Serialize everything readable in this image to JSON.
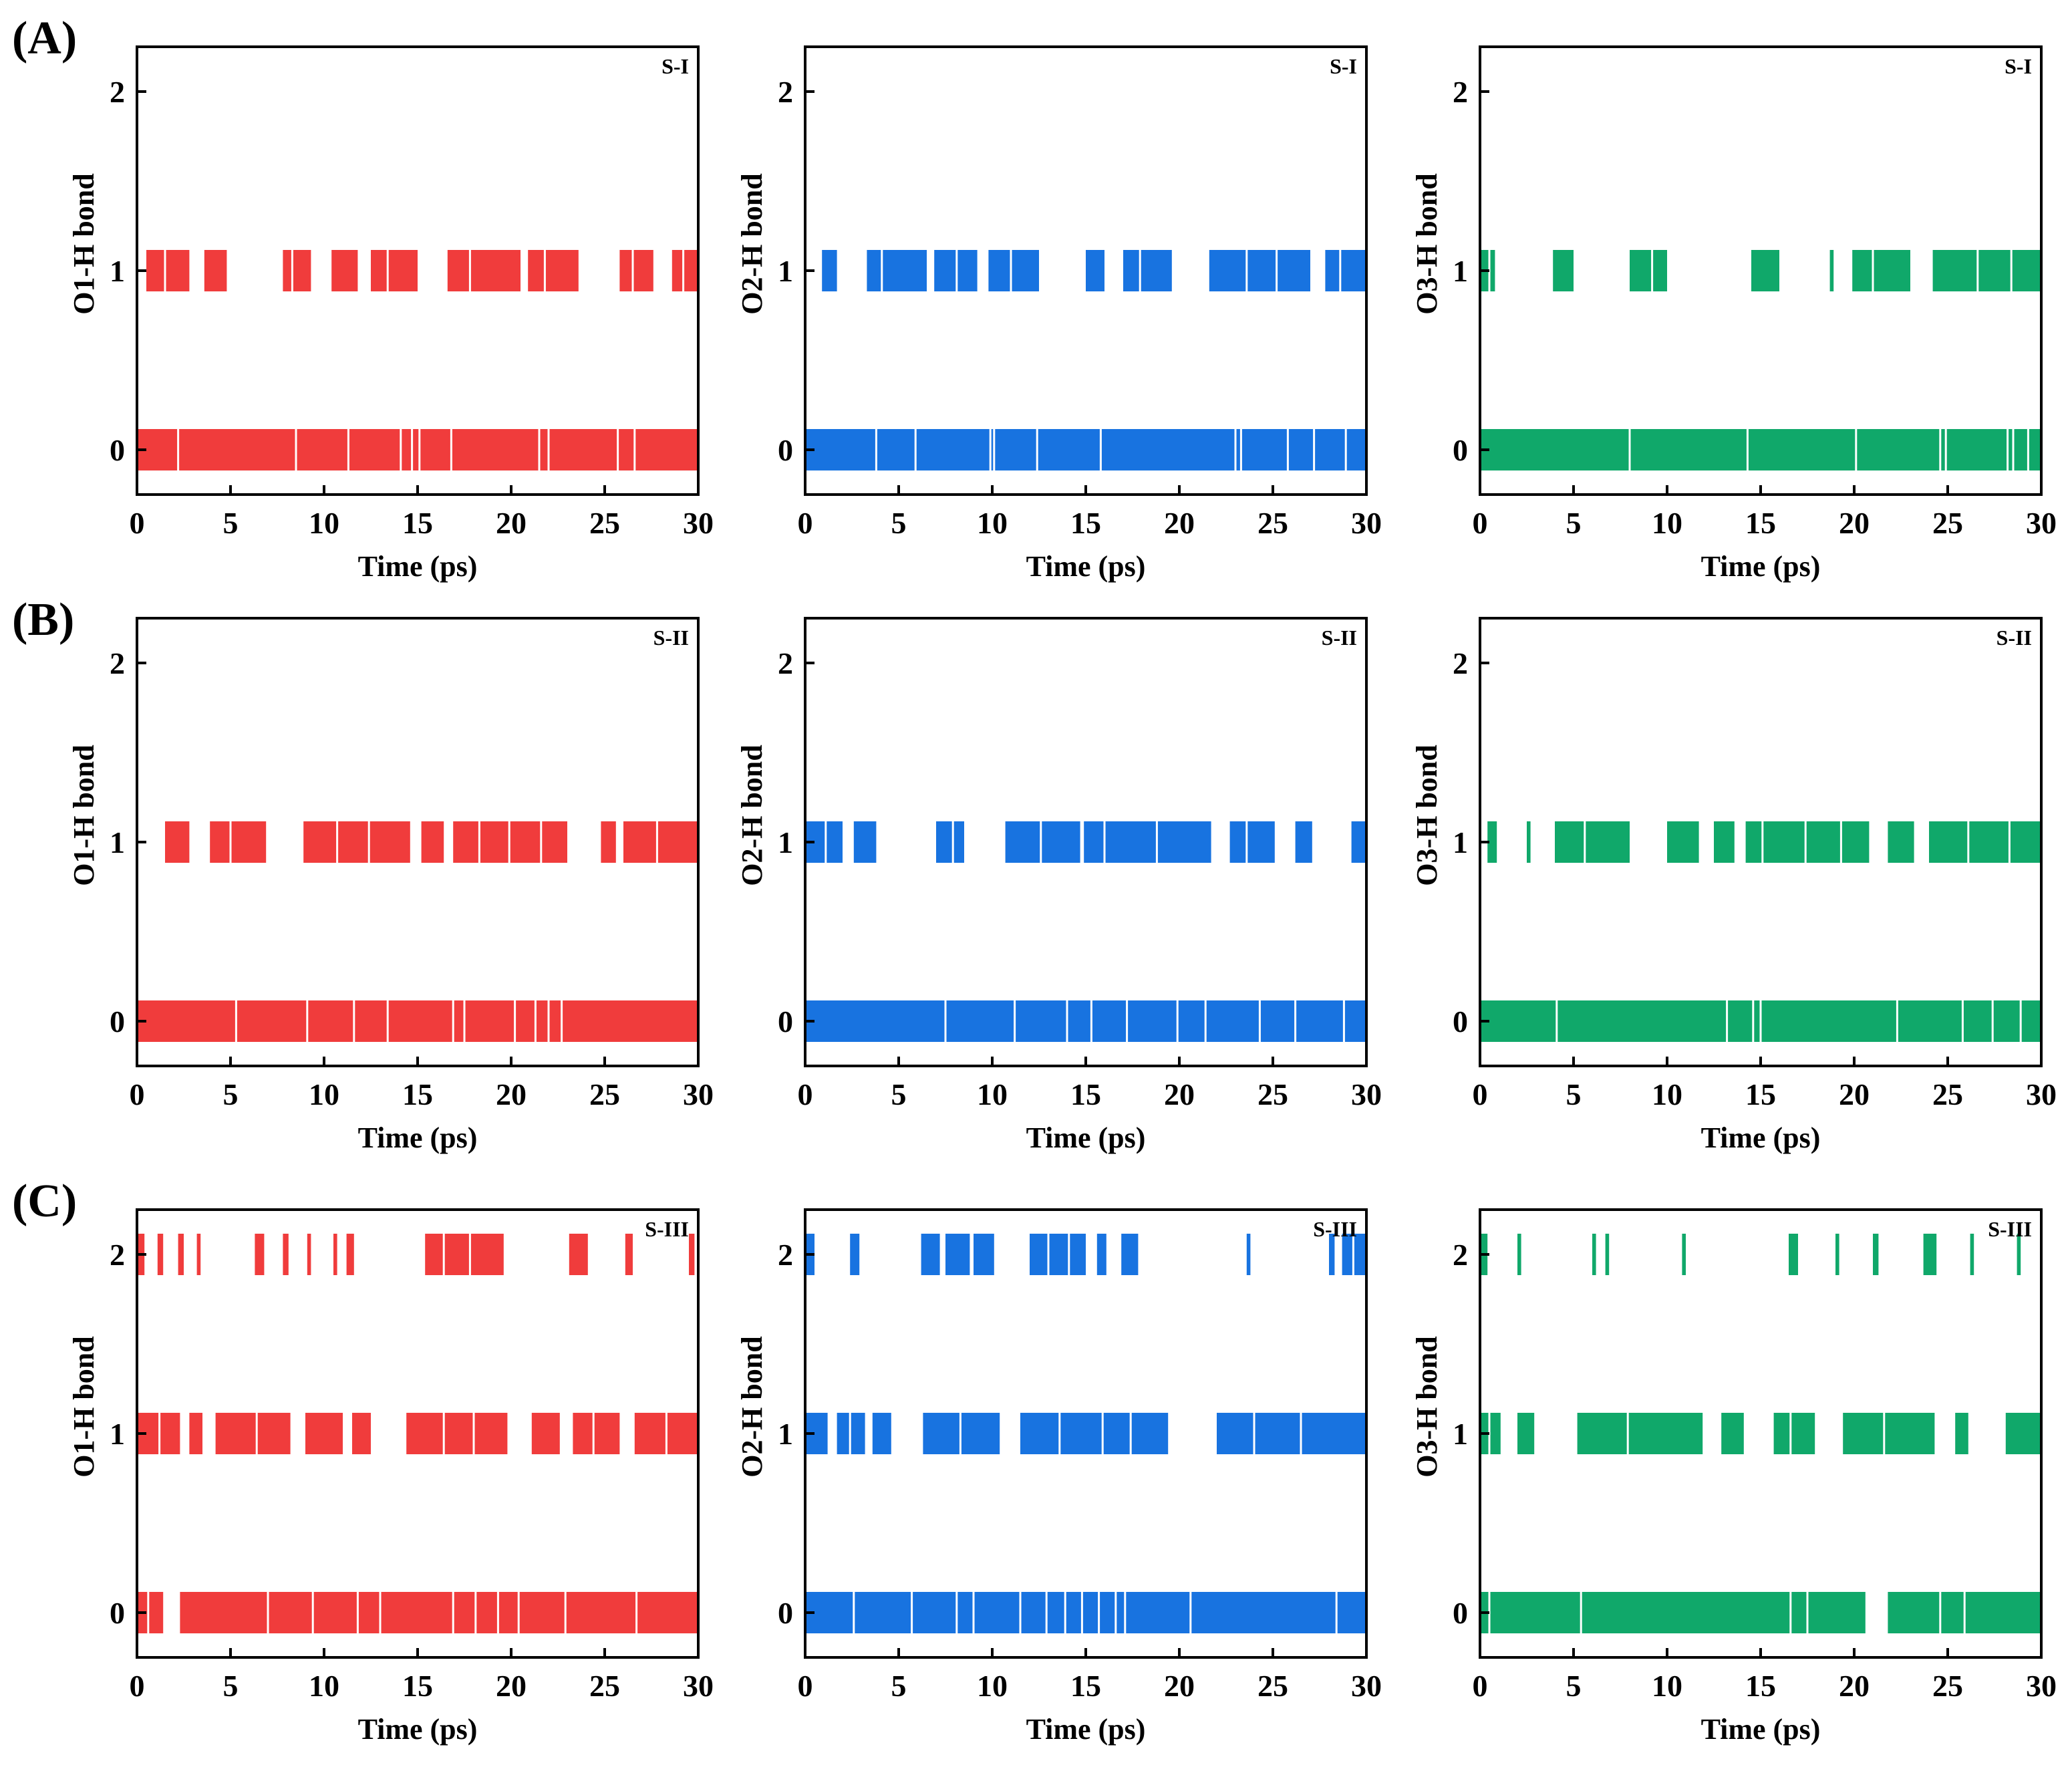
{
  "figure": {
    "row_labels": [
      "(A)",
      "(B)",
      "(C)"
    ]
  },
  "colors": {
    "O1": "#f03c3c",
    "O2": "#1873e0",
    "O3": "#10a86a",
    "axis": "#000000"
  },
  "chart_data": [
    {
      "type": "barcode",
      "id": "A-O1",
      "row": 0,
      "col": 0,
      "series_color": "O1",
      "title": "",
      "tag": "S-I",
      "xlabel": "Time (ps)",
      "ylabel": "O1-H bond",
      "xlim": [
        0,
        30
      ],
      "ylim": [
        -0.25,
        2.25
      ],
      "xticks": [
        "0",
        "5",
        "10",
        "15",
        "20",
        "25",
        "30"
      ],
      "yticks": [
        "0",
        "1",
        "2"
      ],
      "levels": [
        {
          "value": 0,
          "spans": [
            [
              0.0,
              30.0
            ]
          ],
          "gaps": [
            2.2,
            8.5,
            11.3,
            14.1,
            14.7,
            15.1,
            16.8,
            21.5,
            22.0,
            25.7,
            26.6
          ]
        },
        {
          "value": 1,
          "spans": [
            [
              0.5,
              2.8
            ],
            [
              3.6,
              4.8
            ],
            [
              7.8,
              9.3
            ],
            [
              10.4,
              11.8
            ],
            [
              12.5,
              15.0
            ],
            [
              16.6,
              20.5
            ],
            [
              20.9,
              23.6
            ],
            [
              25.8,
              27.6
            ],
            [
              28.6,
              30.0
            ]
          ],
          "gaps": [
            1.5,
            8.3,
            13.4,
            17.8,
            21.8,
            26.5,
            29.2
          ]
        },
        {
          "value": 2,
          "spans": [],
          "gaps": []
        }
      ]
    },
    {
      "type": "barcode",
      "id": "A-O2",
      "row": 0,
      "col": 1,
      "series_color": "O2",
      "title": "",
      "tag": "S-I",
      "xlabel": "Time (ps)",
      "ylabel": "O2-H bond",
      "xlim": [
        0,
        30
      ],
      "ylim": [
        -0.25,
        2.25
      ],
      "xticks": [
        "0",
        "5",
        "10",
        "15",
        "20",
        "25",
        "30"
      ],
      "yticks": [
        "0",
        "1",
        "2"
      ],
      "levels": [
        {
          "value": 0,
          "spans": [
            [
              0.0,
              30.0
            ]
          ],
          "gaps": [
            3.8,
            5.9,
            9.9,
            10.1,
            12.4,
            15.8,
            23.0,
            23.3,
            25.8,
            27.2,
            28.9
          ]
        },
        {
          "value": 1,
          "spans": [
            [
              0.9,
              1.7
            ],
            [
              3.3,
              6.5
            ],
            [
              6.9,
              9.2
            ],
            [
              9.8,
              12.5
            ],
            [
              15.0,
              16.0
            ],
            [
              17.0,
              19.6
            ],
            [
              21.6,
              27.0
            ],
            [
              27.8,
              30.0
            ]
          ],
          "gaps": [
            4.1,
            8.1,
            11.0,
            17.9,
            23.6,
            25.2,
            28.6
          ]
        },
        {
          "value": 2,
          "spans": [],
          "gaps": []
        }
      ]
    },
    {
      "type": "barcode",
      "id": "A-O3",
      "row": 0,
      "col": 2,
      "series_color": "O3",
      "title": "",
      "tag": "S-I",
      "xlabel": "Time (ps)",
      "ylabel": "O3-H bond",
      "xlim": [
        0,
        30
      ],
      "ylim": [
        -0.25,
        2.25
      ],
      "xticks": [
        "0",
        "5",
        "10",
        "15",
        "20",
        "25",
        "30"
      ],
      "yticks": [
        "0",
        "1",
        "2"
      ],
      "levels": [
        {
          "value": 0,
          "spans": [
            [
              0.0,
              30.0
            ]
          ],
          "gaps": [
            8.0,
            14.3,
            20.1,
            24.6,
            24.9,
            28.2,
            28.5,
            29.3
          ]
        },
        {
          "value": 1,
          "spans": [
            [
              0.0,
              0.8
            ],
            [
              3.9,
              5.0
            ],
            [
              8.0,
              10.0
            ],
            [
              14.5,
              16.0
            ],
            [
              18.7,
              18.9
            ],
            [
              19.9,
              23.0
            ],
            [
              24.2,
              30.0
            ]
          ],
          "gaps": [
            0.5,
            9.2,
            21.0,
            26.6,
            28.4
          ]
        },
        {
          "value": 2,
          "spans": [],
          "gaps": []
        }
      ]
    },
    {
      "type": "barcode",
      "id": "B-O1",
      "row": 1,
      "col": 0,
      "series_color": "O1",
      "title": "",
      "tag": "S-II",
      "xlabel": "Time (ps)",
      "ylabel": "O1-H bond",
      "xlim": [
        0,
        30
      ],
      "ylim": [
        -0.25,
        2.25
      ],
      "xticks": [
        "0",
        "5",
        "10",
        "15",
        "20",
        "25",
        "30"
      ],
      "yticks": [
        "0",
        "1",
        "2"
      ],
      "levels": [
        {
          "value": 0,
          "spans": [
            [
              0.0,
              30.0
            ]
          ],
          "gaps": [
            5.3,
            9.1,
            11.6,
            13.4,
            16.9,
            17.5,
            20.2,
            21.3,
            22.0,
            22.7
          ]
        },
        {
          "value": 1,
          "spans": [
            [
              1.5,
              2.8
            ],
            [
              3.9,
              6.9
            ],
            [
              8.9,
              14.6
            ],
            [
              15.2,
              16.4
            ],
            [
              16.9,
              23.0
            ],
            [
              24.8,
              25.6
            ],
            [
              26.0,
              30.0
            ]
          ],
          "gaps": [
            5.0,
            10.7,
            12.4,
            18.3,
            19.9,
            21.6,
            27.8
          ]
        },
        {
          "value": 2,
          "spans": [],
          "gaps": []
        }
      ]
    },
    {
      "type": "barcode",
      "id": "B-O2",
      "row": 1,
      "col": 1,
      "series_color": "O2",
      "title": "",
      "tag": "S-II",
      "xlabel": "Time (ps)",
      "ylabel": "O2-H bond",
      "xlim": [
        0,
        30
      ],
      "ylim": [
        -0.25,
        2.25
      ],
      "xticks": [
        "0",
        "5",
        "10",
        "15",
        "20",
        "25",
        "30"
      ],
      "yticks": [
        "0",
        "1",
        "2"
      ],
      "levels": [
        {
          "value": 0,
          "spans": [
            [
              0.0,
              30.0
            ]
          ],
          "gaps": [
            7.5,
            11.2,
            14.0,
            15.3,
            17.2,
            19.9,
            21.4,
            24.3,
            26.2,
            28.8
          ]
        },
        {
          "value": 1,
          "spans": [
            [
              0.0,
              2.0
            ],
            [
              2.6,
              3.8
            ],
            [
              7.0,
              8.5
            ],
            [
              10.7,
              14.7
            ],
            [
              14.9,
              21.7
            ],
            [
              22.7,
              25.1
            ],
            [
              26.2,
              27.1
            ],
            [
              29.2,
              30.0
            ]
          ],
          "gaps": [
            1.1,
            7.9,
            12.6,
            16.0,
            18.8,
            23.6
          ]
        },
        {
          "value": 2,
          "spans": [],
          "gaps": []
        }
      ]
    },
    {
      "type": "barcode",
      "id": "B-O3",
      "row": 1,
      "col": 2,
      "series_color": "O3",
      "title": "",
      "tag": "S-II",
      "xlabel": "Time (ps)",
      "ylabel": "O3-H bond",
      "xlim": [
        0,
        30
      ],
      "ylim": [
        -0.25,
        2.25
      ],
      "xticks": [
        "0",
        "5",
        "10",
        "15",
        "20",
        "25",
        "30"
      ],
      "yticks": [
        "0",
        "1",
        "2"
      ],
      "levels": [
        {
          "value": 0,
          "spans": [
            [
              0.0,
              30.0
            ]
          ],
          "gaps": [
            4.1,
            13.2,
            14.6,
            15.0,
            22.3,
            25.8,
            27.4,
            28.9
          ]
        },
        {
          "value": 1,
          "spans": [
            [
              0.4,
              0.9
            ],
            [
              2.5,
              2.7
            ],
            [
              4.0,
              8.0
            ],
            [
              10.0,
              11.7
            ],
            [
              12.5,
              13.6
            ],
            [
              14.2,
              20.8
            ],
            [
              21.8,
              23.2
            ],
            [
              24.0,
              30.0
            ]
          ],
          "gaps": [
            5.6,
            15.1,
            17.4,
            19.3,
            26.1,
            28.3
          ]
        },
        {
          "value": 2,
          "spans": [],
          "gaps": []
        }
      ]
    },
    {
      "type": "barcode",
      "id": "C-O1",
      "row": 2,
      "col": 0,
      "series_color": "O1",
      "title": "",
      "tag": "S-III",
      "xlabel": "Time (ps)",
      "ylabel": "O1-H bond",
      "xlim": [
        0,
        30
      ],
      "ylim": [
        -0.25,
        2.25
      ],
      "xticks": [
        "0",
        "5",
        "10",
        "15",
        "20",
        "25",
        "30"
      ],
      "yticks": [
        "0",
        "1",
        "2"
      ],
      "levels": [
        {
          "value": 0,
          "spans": [
            [
              0.0,
              1.4
            ],
            [
              2.3,
              30.0
            ]
          ],
          "gaps": [
            0.6,
            7.0,
            9.4,
            11.8,
            13.0,
            16.9,
            18.1,
            19.3,
            20.4,
            22.9,
            26.7
          ]
        },
        {
          "value": 1,
          "spans": [
            [
              0.0,
              2.3
            ],
            [
              2.8,
              3.5
            ],
            [
              4.2,
              8.2
            ],
            [
              9.0,
              11.0
            ],
            [
              11.5,
              12.5
            ],
            [
              14.4,
              19.8
            ],
            [
              21.1,
              22.6
            ],
            [
              23.3,
              25.8
            ],
            [
              26.6,
              30.0
            ]
          ],
          "gaps": [
            1.2,
            6.4,
            16.4,
            18.0,
            24.4,
            28.3
          ]
        },
        {
          "value": 2,
          "spans": [
            [
              0.0,
              0.4
            ],
            [
              1.1,
              1.4
            ],
            [
              2.2,
              2.5
            ],
            [
              3.2,
              3.4
            ],
            [
              6.3,
              6.8
            ],
            [
              7.8,
              8.1
            ],
            [
              9.1,
              9.3
            ],
            [
              10.5,
              10.7
            ],
            [
              11.2,
              11.6
            ],
            [
              15.4,
              19.6
            ],
            [
              23.1,
              24.1
            ],
            [
              26.1,
              26.5
            ],
            [
              29.5,
              29.8
            ]
          ],
          "gaps": [
            16.4,
            17.8
          ]
        }
      ]
    },
    {
      "type": "barcode",
      "id": "C-O2",
      "row": 2,
      "col": 1,
      "series_color": "O2",
      "title": "",
      "tag": "S-III",
      "xlabel": "Time (ps)",
      "ylabel": "O2-H bond",
      "xlim": [
        0,
        30
      ],
      "ylim": [
        -0.25,
        2.25
      ],
      "xticks": [
        "0",
        "5",
        "10",
        "15",
        "20",
        "25",
        "30"
      ],
      "yticks": [
        "0",
        "1",
        "2"
      ],
      "levels": [
        {
          "value": 0,
          "spans": [
            [
              0.0,
              30.0
            ]
          ],
          "gaps": [
            2.6,
            5.7,
            8.1,
            9.0,
            11.5,
            12.9,
            13.9,
            14.8,
            15.7,
            16.6,
            17.1,
            20.6,
            28.4
          ]
        },
        {
          "value": 1,
          "spans": [
            [
              0.0,
              1.2
            ],
            [
              1.7,
              3.2
            ],
            [
              3.6,
              4.6
            ],
            [
              6.3,
              10.4
            ],
            [
              11.5,
              19.4
            ],
            [
              22.0,
              30.0
            ]
          ],
          "gaps": [
            2.4,
            8.3,
            13.6,
            15.9,
            17.4,
            24.0,
            26.5
          ]
        },
        {
          "value": 2,
          "spans": [
            [
              0.0,
              0.5
            ],
            [
              2.4,
              2.9
            ],
            [
              6.2,
              7.2
            ],
            [
              7.5,
              8.8
            ],
            [
              9.0,
              10.1
            ],
            [
              12.0,
              15.0
            ],
            [
              15.6,
              16.1
            ],
            [
              16.9,
              17.8
            ],
            [
              23.6,
              23.8
            ],
            [
              28.0,
              28.3
            ],
            [
              28.7,
              30.0
            ]
          ],
          "gaps": [
            13.0,
            14.1,
            29.3
          ]
        }
      ]
    },
    {
      "type": "barcode",
      "id": "C-O3",
      "row": 2,
      "col": 2,
      "series_color": "O3",
      "title": "",
      "tag": "S-III",
      "xlabel": "Time (ps)",
      "ylabel": "O3-H bond",
      "xlim": [
        0,
        30
      ],
      "ylim": [
        -0.25,
        2.25
      ],
      "xticks": [
        "0",
        "5",
        "10",
        "15",
        "20",
        "25",
        "30"
      ],
      "yticks": [
        "0",
        "1",
        "2"
      ],
      "levels": [
        {
          "value": 0,
          "spans": [
            [
              0.0,
              20.6
            ],
            [
              21.8,
              30.0
            ]
          ],
          "gaps": [
            0.5,
            5.4,
            16.6,
            17.5,
            24.6,
            25.9
          ]
        },
        {
          "value": 1,
          "spans": [
            [
              0.0,
              1.1
            ],
            [
              2.0,
              2.9
            ],
            [
              5.2,
              11.9
            ],
            [
              12.9,
              14.1
            ],
            [
              15.7,
              17.9
            ],
            [
              19.4,
              24.3
            ],
            [
              25.4,
              26.1
            ],
            [
              28.1,
              30.0
            ]
          ],
          "gaps": [
            0.5,
            7.9,
            16.6,
            21.6
          ]
        },
        {
          "value": 2,
          "spans": [
            [
              0.0,
              0.4
            ],
            [
              2.0,
              2.2
            ],
            [
              6.0,
              6.2
            ],
            [
              6.7,
              6.9
            ],
            [
              10.8,
              11.0
            ],
            [
              16.5,
              17.0
            ],
            [
              19.0,
              19.2
            ],
            [
              21.0,
              21.3
            ],
            [
              23.7,
              24.4
            ],
            [
              26.2,
              26.4
            ],
            [
              28.7,
              28.9
            ]
          ],
          "gaps": []
        }
      ]
    }
  ]
}
